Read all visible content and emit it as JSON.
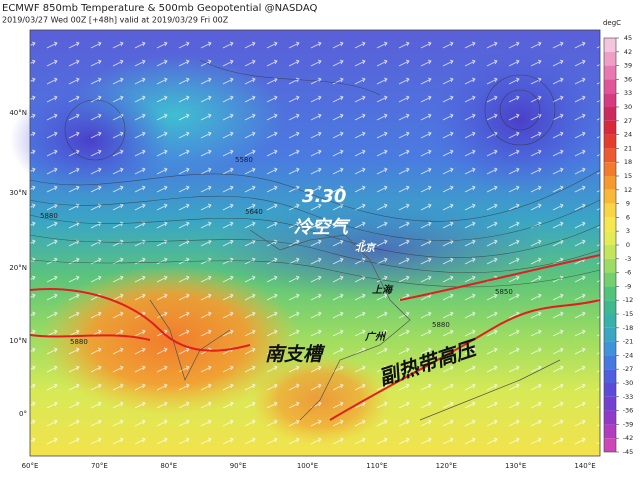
{
  "header": {
    "title": "ECMWF 850mb Temperature & 500mb Geopotential @NASDAQ",
    "subtitle": "2019/03/27 Wed 00Z [+48h] valid at 2019/03/29 Fri 00Z"
  },
  "map": {
    "lat_labels": [
      "40°N",
      "30°N",
      "20°N",
      "10°N",
      "0°"
    ],
    "lon_labels": [
      "60°E",
      "70°E",
      "80°E",
      "90°E",
      "100°E",
      "110°E",
      "120°E",
      "130°E",
      "140°E"
    ],
    "annotations": {
      "date": "3.30",
      "cold_air": "冷空气",
      "trough": "南支槽",
      "subtropical_high": "副热带高压"
    },
    "cities": [
      "北京",
      "上海",
      "广州"
    ],
    "contour_labels": [
      "5580",
      "5640",
      "5880",
      "5880",
      "5850",
      "5880"
    ]
  },
  "colorbar": {
    "unit": "degC",
    "ticks": [
      45,
      42,
      39,
      36,
      33,
      30,
      27,
      24,
      21,
      18,
      15,
      12,
      9,
      6,
      3,
      0,
      -3,
      -6,
      -9,
      -12,
      -15,
      -18,
      -21,
      -24,
      -27,
      -30,
      -33,
      -36,
      -39,
      -42,
      -45
    ],
    "colors": [
      "#f4c6de",
      "#ee9fc8",
      "#e878b2",
      "#e0559a",
      "#d63a7f",
      "#cc2a5c",
      "#d8283a",
      "#e43c2f",
      "#ec5a2f",
      "#f27b2d",
      "#f59a30",
      "#f8b838",
      "#f9d444",
      "#f5e84e",
      "#e2ec56",
      "#c2e55c",
      "#9cdc62",
      "#74d06c",
      "#52c47a",
      "#3eb98e",
      "#38b1a8",
      "#3aa6c4",
      "#3f93d8",
      "#4679e0",
      "#4f5fdf",
      "#5c4bd8",
      "#7340cf",
      "#8f3bc7",
      "#b03dbf",
      "#cc46b8"
    ]
  }
}
